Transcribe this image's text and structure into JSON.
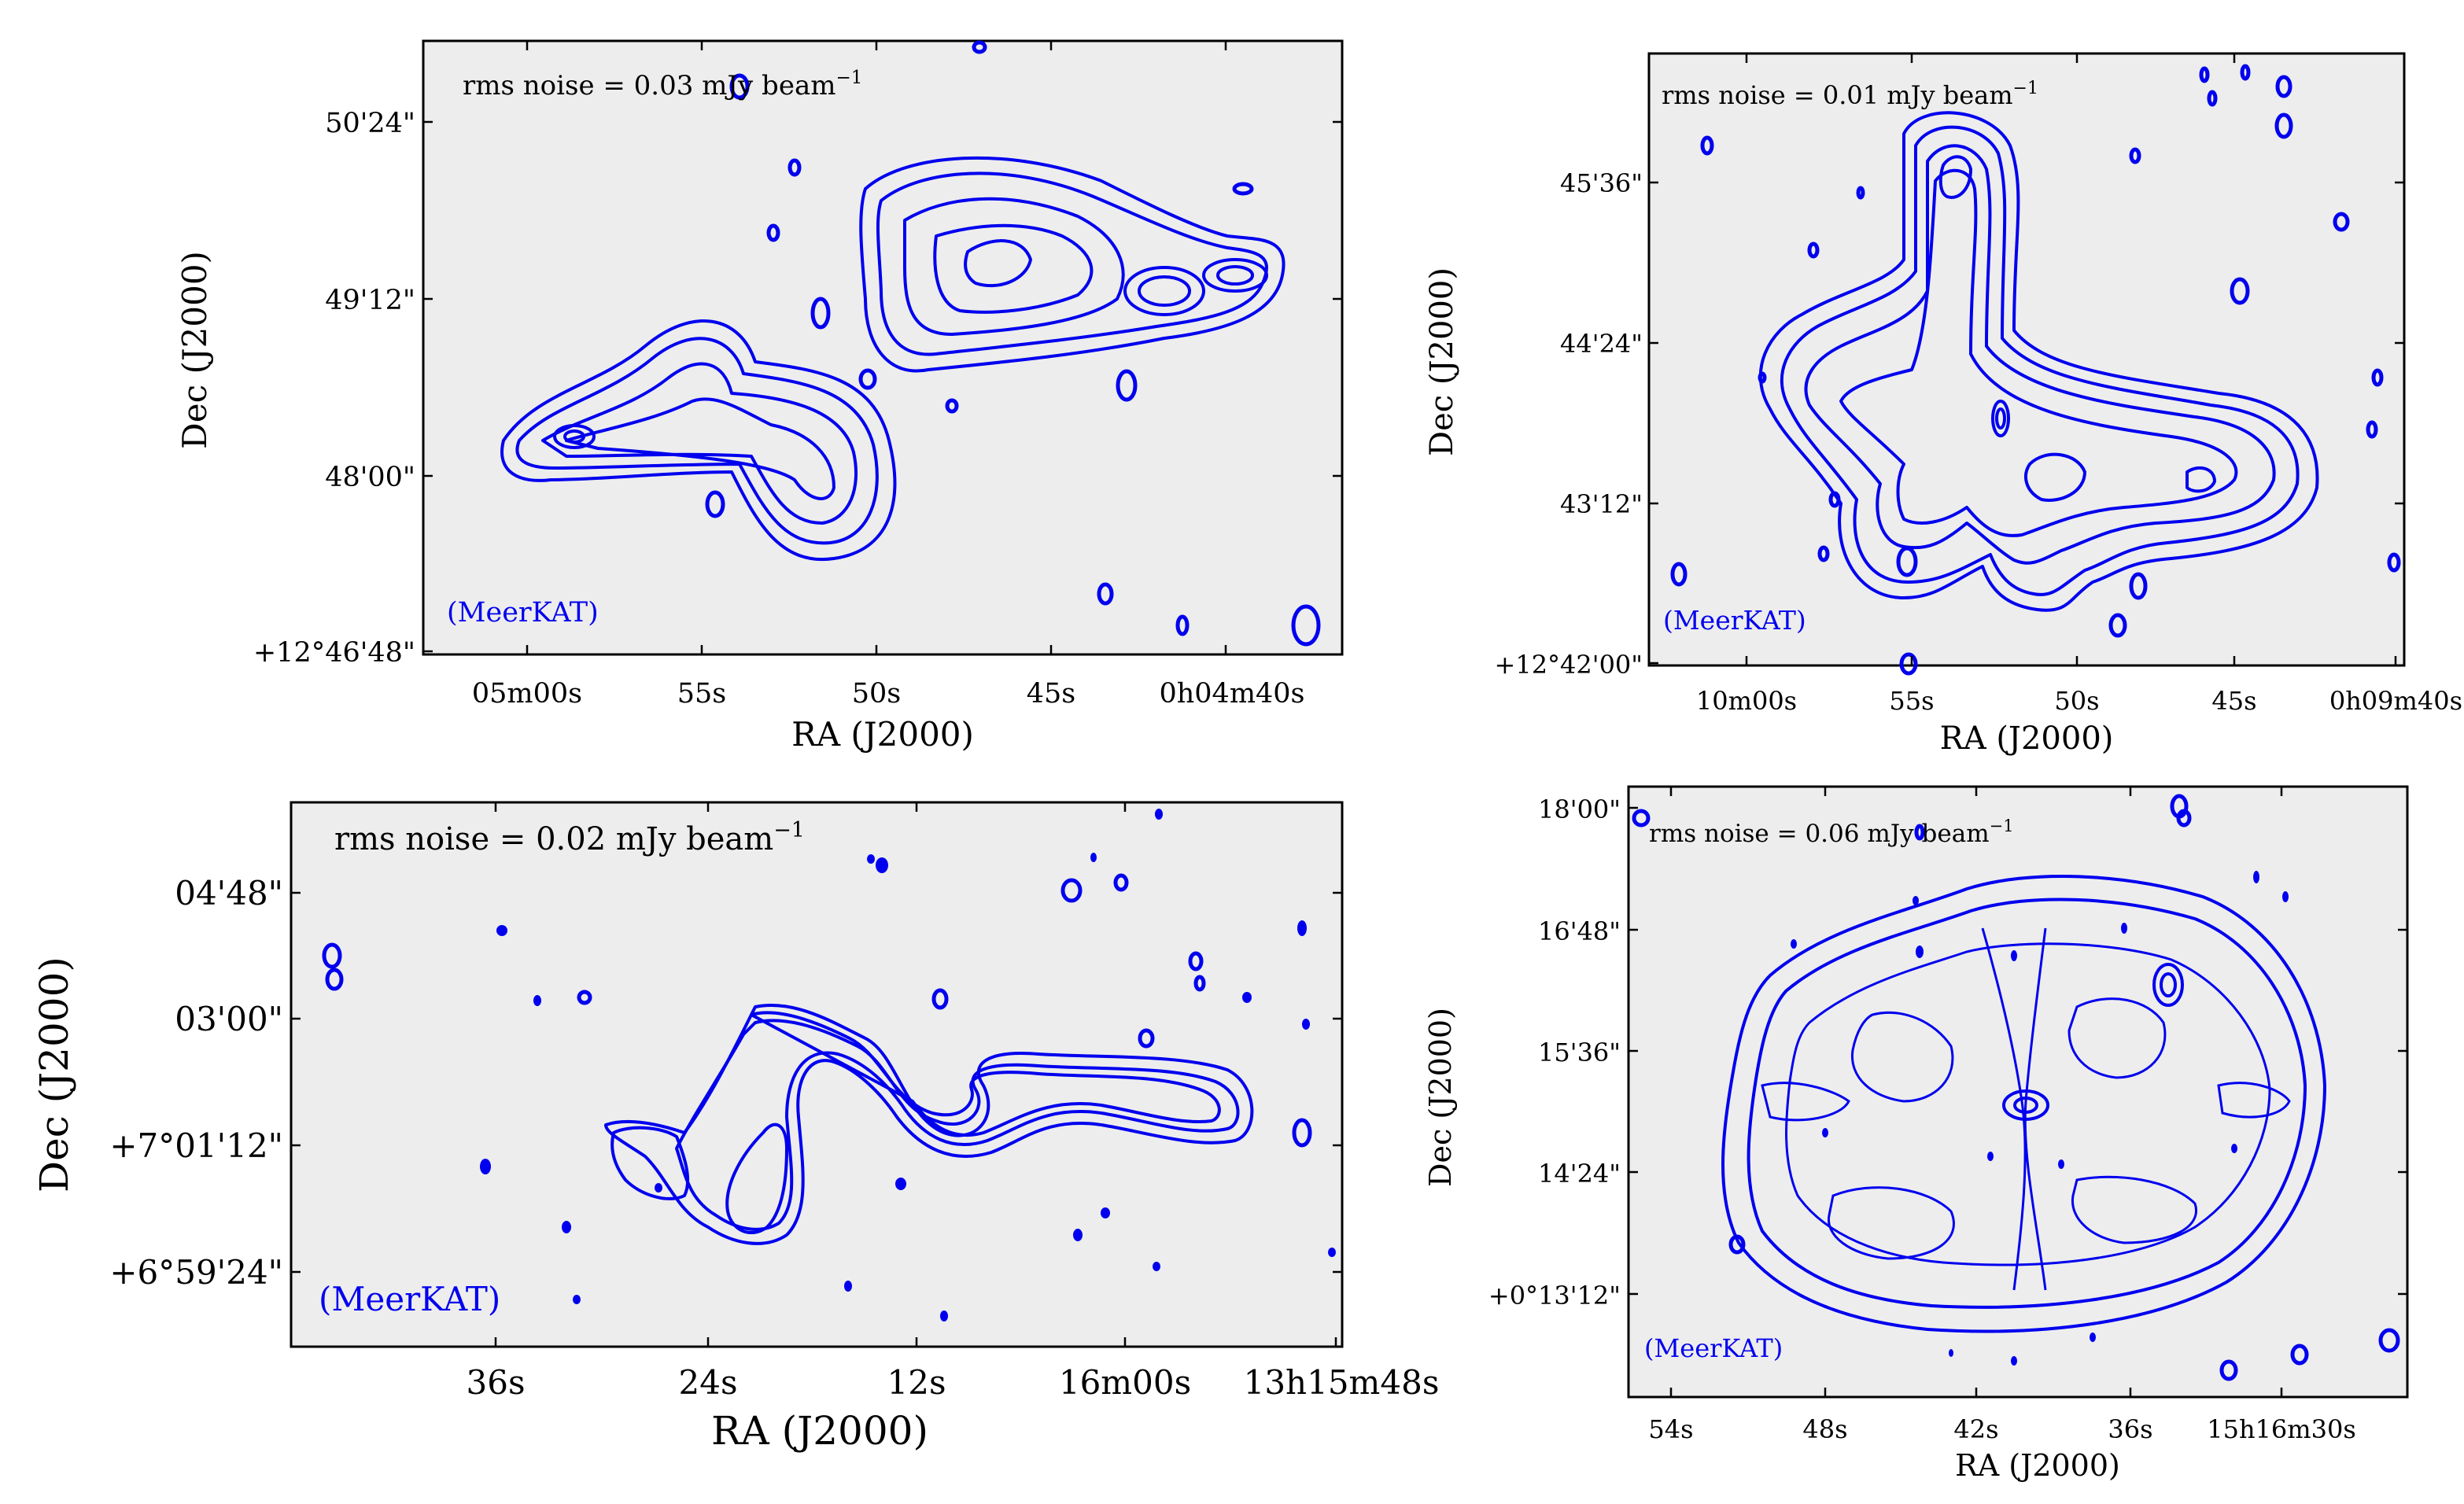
{
  "chart_data": [
    {
      "type": "contour",
      "panel": "top-left",
      "annotation": "rms noise = 0.03 mJy beam",
      "annotation_sup": "−1",
      "telescope": "(MeerKAT)",
      "xlabel": "RA (J2000)",
      "ylabel": "Dec (J2000)",
      "xticks": [
        "05m00s",
        "55s",
        "50s",
        "45s",
        "0h04m40s"
      ],
      "yticks": [
        "50'24\"",
        "49'12\"",
        "48'00\"",
        "+12°46'48\""
      ],
      "colors": {
        "contour": "#0000ee",
        "background": "#ededed"
      }
    },
    {
      "type": "contour",
      "panel": "top-right",
      "annotation": "rms noise = 0.01 mJy beam",
      "annotation_sup": "−1",
      "telescope": "(MeerKAT)",
      "xlabel": "RA (J2000)",
      "ylabel": "Dec (J2000)",
      "xticks": [
        "10m00s",
        "55s",
        "50s",
        "45s",
        "0h09m40s"
      ],
      "yticks": [
        "45'36\"",
        "44'24\"",
        "43'12\"",
        "+12°42'00\""
      ],
      "colors": {
        "contour": "#0000ee",
        "background": "#ededed"
      }
    },
    {
      "type": "contour",
      "panel": "bottom-left",
      "annotation": "rms noise = 0.02 mJy beam",
      "annotation_sup": "−1",
      "telescope": "(MeerKAT)",
      "xlabel": "RA (J2000)",
      "ylabel": "Dec (J2000)",
      "xticks": [
        "36s",
        "24s",
        "12s",
        "16m00s",
        "13h15m48s"
      ],
      "yticks": [
        "04'48\"",
        "03'00\"",
        "+7°01'12\"",
        "+6°59'24\""
      ],
      "colors": {
        "contour": "#0000ee",
        "background": "#ededed"
      }
    },
    {
      "type": "contour",
      "panel": "bottom-right",
      "annotation": "rms noise = 0.06 mJy beam",
      "annotation_sup": "−1",
      "telescope": "(MeerKAT)",
      "xlabel": "RA (J2000)",
      "ylabel": "Dec (J2000)",
      "xticks": [
        "54s",
        "48s",
        "42s",
        "36s",
        "15h16m30s"
      ],
      "yticks": [
        "18'00\"",
        "16'48\"",
        "15'36\"",
        "14'24\"",
        "+0°13'12\""
      ],
      "colors": {
        "contour": "#0000ee",
        "background": "#ededed"
      }
    }
  ]
}
